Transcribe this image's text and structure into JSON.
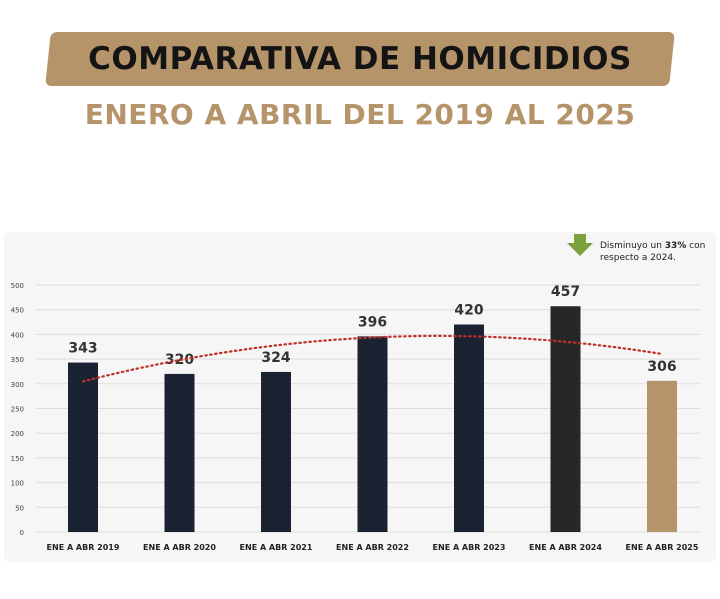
{
  "header": {
    "title": "COMPARATIVA DE HOMICIDIOS",
    "subtitle": "ENERO A ABRIL DEL 2019 AL 2025"
  },
  "note": {
    "prefix": "Disminuyo un ",
    "highlight": "33%",
    "suffix": " con respecto a 2024."
  },
  "chart_data": {
    "type": "bar",
    "categories": [
      "ENE A ABR 2019",
      "ENE A ABR 2020",
      "ENE A ABR 2021",
      "ENE A ABR 2022",
      "ENE A ABR 2023",
      "ENE A ABR 2024",
      "ENE A ABR 2025"
    ],
    "values": [
      343,
      320,
      324,
      396,
      420,
      457,
      306
    ],
    "ylim": [
      0,
      500
    ],
    "yticks": [
      0,
      50,
      100,
      150,
      200,
      250,
      300,
      350,
      400,
      450,
      500
    ],
    "bar_colors": [
      "#1b2333",
      "#1b2333",
      "#1b2333",
      "#1b2333",
      "#1b2333",
      "#272727",
      "#b5946a"
    ],
    "trendline": {
      "style": "dotted",
      "color": "#c0302a"
    },
    "grid": true,
    "legend": "none",
    "arrow_color": "#7aa23a"
  }
}
